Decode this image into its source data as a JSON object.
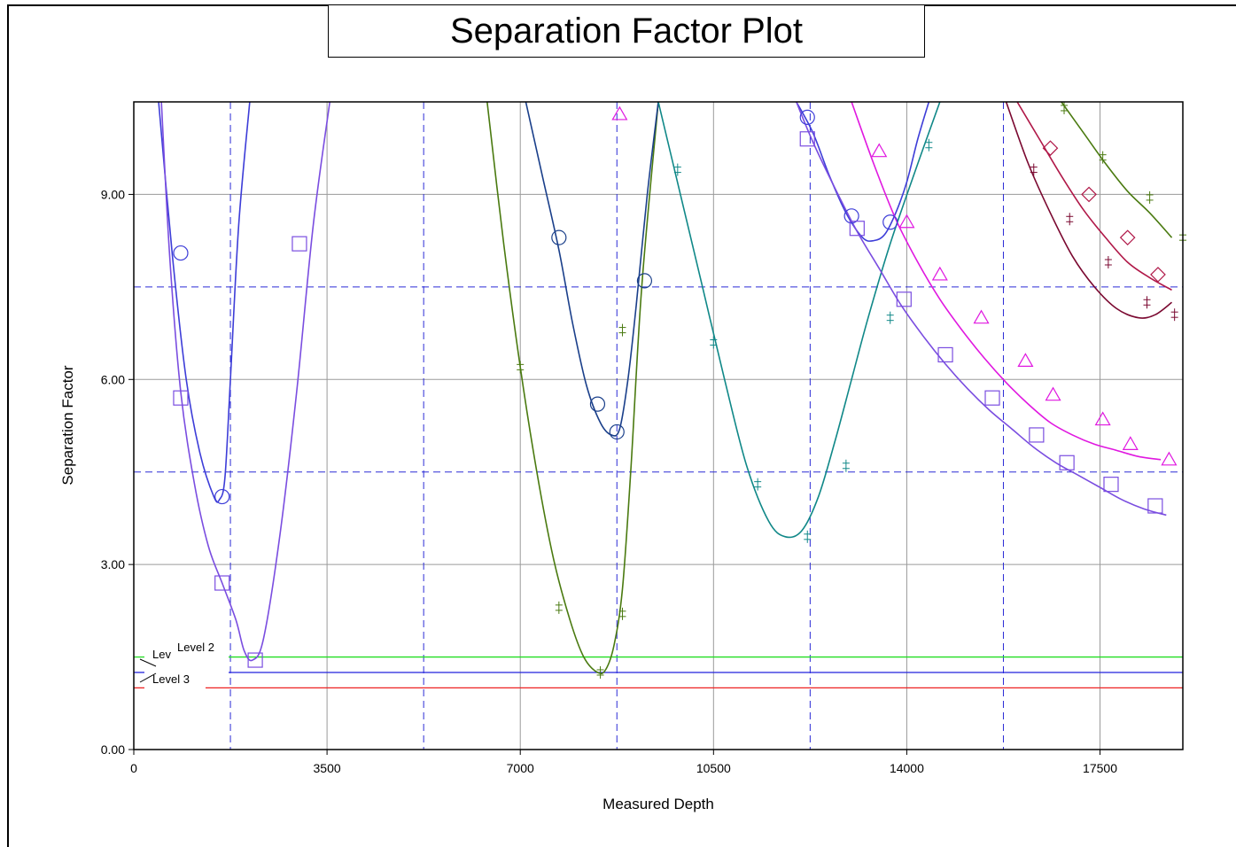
{
  "chart_data": {
    "type": "line",
    "title": "Separation Factor Plot",
    "xlabel": "Measured Depth",
    "ylabel": "Separation  Factor",
    "xlim": [
      0,
      19000
    ],
    "ylim": [
      0,
      10.5
    ],
    "x_ticks": [
      "0",
      "3500",
      "7000",
      "10500",
      "14000",
      "17500"
    ],
    "x_tick_values": [
      0,
      3500,
      7000,
      10500,
      14000,
      17500
    ],
    "y_ticks": [
      "0.00",
      "3.00",
      "6.00",
      "9.00"
    ],
    "y_tick_values": [
      0,
      3,
      6,
      9
    ],
    "grid": true,
    "minor_dashed_x": [
      1750,
      5250,
      8750,
      12250,
      15750,
      19250
    ],
    "minor_dashed_y": [
      4.5,
      7.5
    ],
    "levels": [
      {
        "label": "Level 1",
        "display": "Lev",
        "value": 1.5,
        "color": "#22dd22"
      },
      {
        "label": "Level 2",
        "display": "Level 2",
        "value": 1.25,
        "color": "#2222dd"
      },
      {
        "label": "Level 3",
        "display": "Level 3",
        "value": 1.0,
        "color": "#ee2222"
      }
    ],
    "series": [
      {
        "color": "#3d3dd8",
        "marker": "circle",
        "x": [
          450,
          700,
          950,
          1200,
          1450,
          1550,
          1650,
          1750,
          1900,
          2100
        ],
        "y": [
          10.5,
          8.0,
          6.0,
          4.8,
          4.1,
          4.05,
          4.4,
          6.0,
          8.5,
          10.5
        ],
        "markers": [
          [
            850,
            8.05
          ],
          [
            1600,
            4.1
          ]
        ]
      },
      {
        "color": "#7a4de0",
        "marker": "square",
        "x": [
          500,
          650,
          850,
          1100,
          1350,
          1600,
          1850,
          2000,
          2150,
          2350,
          2650,
          2950,
          3250,
          3550
        ],
        "y": [
          10.5,
          8.0,
          5.8,
          4.3,
          3.3,
          2.7,
          2.1,
          1.6,
          1.45,
          1.8,
          3.5,
          5.8,
          8.5,
          10.5
        ],
        "markers": [
          [
            850,
            5.7
          ],
          [
            1600,
            2.7
          ],
          [
            2200,
            1.45
          ],
          [
            3000,
            8.2
          ]
        ]
      },
      {
        "color": "#4a7a10",
        "marker": "plus",
        "x": [
          6400,
          6700,
          7000,
          7300,
          7600,
          7900,
          8150,
          8400,
          8550,
          8700,
          8850,
          9000,
          9200,
          9500
        ],
        "y": [
          10.5,
          8.2,
          6.2,
          4.5,
          3.1,
          2.1,
          1.5,
          1.25,
          1.3,
          1.7,
          2.6,
          4.5,
          7.5,
          10.5
        ],
        "markers": [
          [
            7000,
            6.2
          ],
          [
            7700,
            2.3
          ],
          [
            8450,
            1.25
          ],
          [
            8850,
            2.2
          ],
          [
            8850,
            6.8
          ]
        ]
      },
      {
        "color": "#1a3f8a",
        "marker": "circle",
        "x": [
          7100,
          7400,
          7700,
          7950,
          8200,
          8450,
          8650,
          8800,
          8950,
          9100,
          9300,
          9500
        ],
        "y": [
          10.5,
          9.3,
          8.1,
          6.9,
          5.9,
          5.3,
          5.1,
          5.2,
          6.0,
          7.2,
          9.0,
          10.5
        ],
        "markers": [
          [
            7700,
            8.3
          ],
          [
            8400,
            5.6
          ],
          [
            8750,
            5.15
          ],
          [
            9250,
            7.6
          ]
        ]
      },
      {
        "color": "#108888",
        "marker": "plus",
        "x": [
          9500,
          9900,
          10300,
          10700,
          11100,
          11500,
          11800,
          12100,
          12400,
          12700,
          13000,
          13300,
          13700,
          14200,
          14600
        ],
        "y": [
          10.5,
          9.0,
          7.5,
          6.0,
          4.6,
          3.7,
          3.45,
          3.55,
          4.1,
          5.0,
          6.0,
          7.0,
          8.2,
          9.5,
          10.5
        ],
        "markers": [
          [
            9850,
            9.4
          ],
          [
            10500,
            6.6
          ],
          [
            11300,
            4.3
          ],
          [
            12200,
            3.45
          ],
          [
            12900,
            4.6
          ],
          [
            13700,
            7.0
          ],
          [
            14400,
            9.8
          ]
        ]
      },
      {
        "color": "#3d3dd8",
        "marker": "circle",
        "x": [
          12000,
          12300,
          12600,
          12900,
          13200,
          13400,
          13600,
          13800,
          14000,
          14200,
          14400
        ],
        "y": [
          10.5,
          10.0,
          9.3,
          8.7,
          8.3,
          8.25,
          8.35,
          8.7,
          9.2,
          9.9,
          10.5
        ],
        "markers": [
          [
            12200,
            10.25
          ],
          [
            13000,
            8.65
          ],
          [
            13700,
            8.55
          ]
        ]
      },
      {
        "color": "#7a4de0",
        "marker": "square",
        "x": [
          12000,
          12300,
          12700,
          13100,
          13500,
          13900,
          14300,
          14700,
          15100,
          15500,
          15900,
          16300,
          16700,
          17100,
          17500,
          17900,
          18300,
          18700
        ],
        "y": [
          10.5,
          9.85,
          9.1,
          8.4,
          7.8,
          7.2,
          6.7,
          6.25,
          5.85,
          5.5,
          5.2,
          4.9,
          4.65,
          4.45,
          4.25,
          4.05,
          3.9,
          3.8
        ],
        "markers": [
          [
            12200,
            9.9
          ],
          [
            13100,
            8.45
          ],
          [
            13950,
            7.3
          ],
          [
            14700,
            6.4
          ],
          [
            15550,
            5.7
          ],
          [
            16350,
            5.1
          ],
          [
            16900,
            4.65
          ],
          [
            17700,
            4.3
          ],
          [
            18500,
            3.95
          ]
        ]
      },
      {
        "color": "#e018e0",
        "marker": "triangle",
        "x": [
          13000,
          13400,
          13800,
          14200,
          14600,
          15000,
          15400,
          15800,
          16200,
          16600,
          17000,
          17400,
          17800,
          18200,
          18600
        ],
        "y": [
          10.5,
          9.5,
          8.6,
          7.9,
          7.3,
          6.8,
          6.35,
          5.95,
          5.6,
          5.3,
          5.1,
          4.95,
          4.85,
          4.75,
          4.7
        ],
        "markers": [
          [
            8800,
            10.3
          ],
          [
            13500,
            9.7
          ],
          [
            14000,
            8.55
          ],
          [
            14600,
            7.7
          ],
          [
            15350,
            7.0
          ],
          [
            16150,
            6.3
          ],
          [
            16650,
            5.75
          ],
          [
            17550,
            5.35
          ],
          [
            18050,
            4.95
          ],
          [
            18750,
            4.7
          ]
        ]
      },
      {
        "color": "#b01848",
        "marker": "diamond",
        "x": [
          16000,
          16400,
          16800,
          17200,
          17600,
          18000,
          18400,
          18800
        ],
        "y": [
          10.5,
          9.9,
          9.3,
          8.75,
          8.3,
          7.9,
          7.65,
          7.45
        ],
        "markers": [
          [
            16600,
            9.75
          ],
          [
            17300,
            9.0
          ],
          [
            18000,
            8.3
          ],
          [
            18550,
            7.7
          ]
        ]
      },
      {
        "color": "#7a0830",
        "marker": "plus",
        "x": [
          15800,
          16200,
          16600,
          17000,
          17400,
          17800,
          18200,
          18500,
          18800
        ],
        "y": [
          10.5,
          9.5,
          8.7,
          8.0,
          7.5,
          7.15,
          7.0,
          7.05,
          7.25
        ],
        "markers": [
          [
            16300,
            9.4
          ],
          [
            16950,
            8.6
          ],
          [
            17650,
            7.9
          ],
          [
            18350,
            7.25
          ],
          [
            18850,
            7.05
          ]
        ]
      },
      {
        "color": "#4a7a10",
        "marker": "plus",
        "x": [
          16800,
          17200,
          17600,
          18000,
          18400,
          18800
        ],
        "y": [
          10.5,
          10.0,
          9.5,
          9.05,
          8.7,
          8.3
        ],
        "markers": [
          [
            16850,
            10.4
          ],
          [
            17550,
            9.6
          ],
          [
            18400,
            8.95
          ],
          [
            19000,
            8.3
          ]
        ]
      }
    ]
  }
}
